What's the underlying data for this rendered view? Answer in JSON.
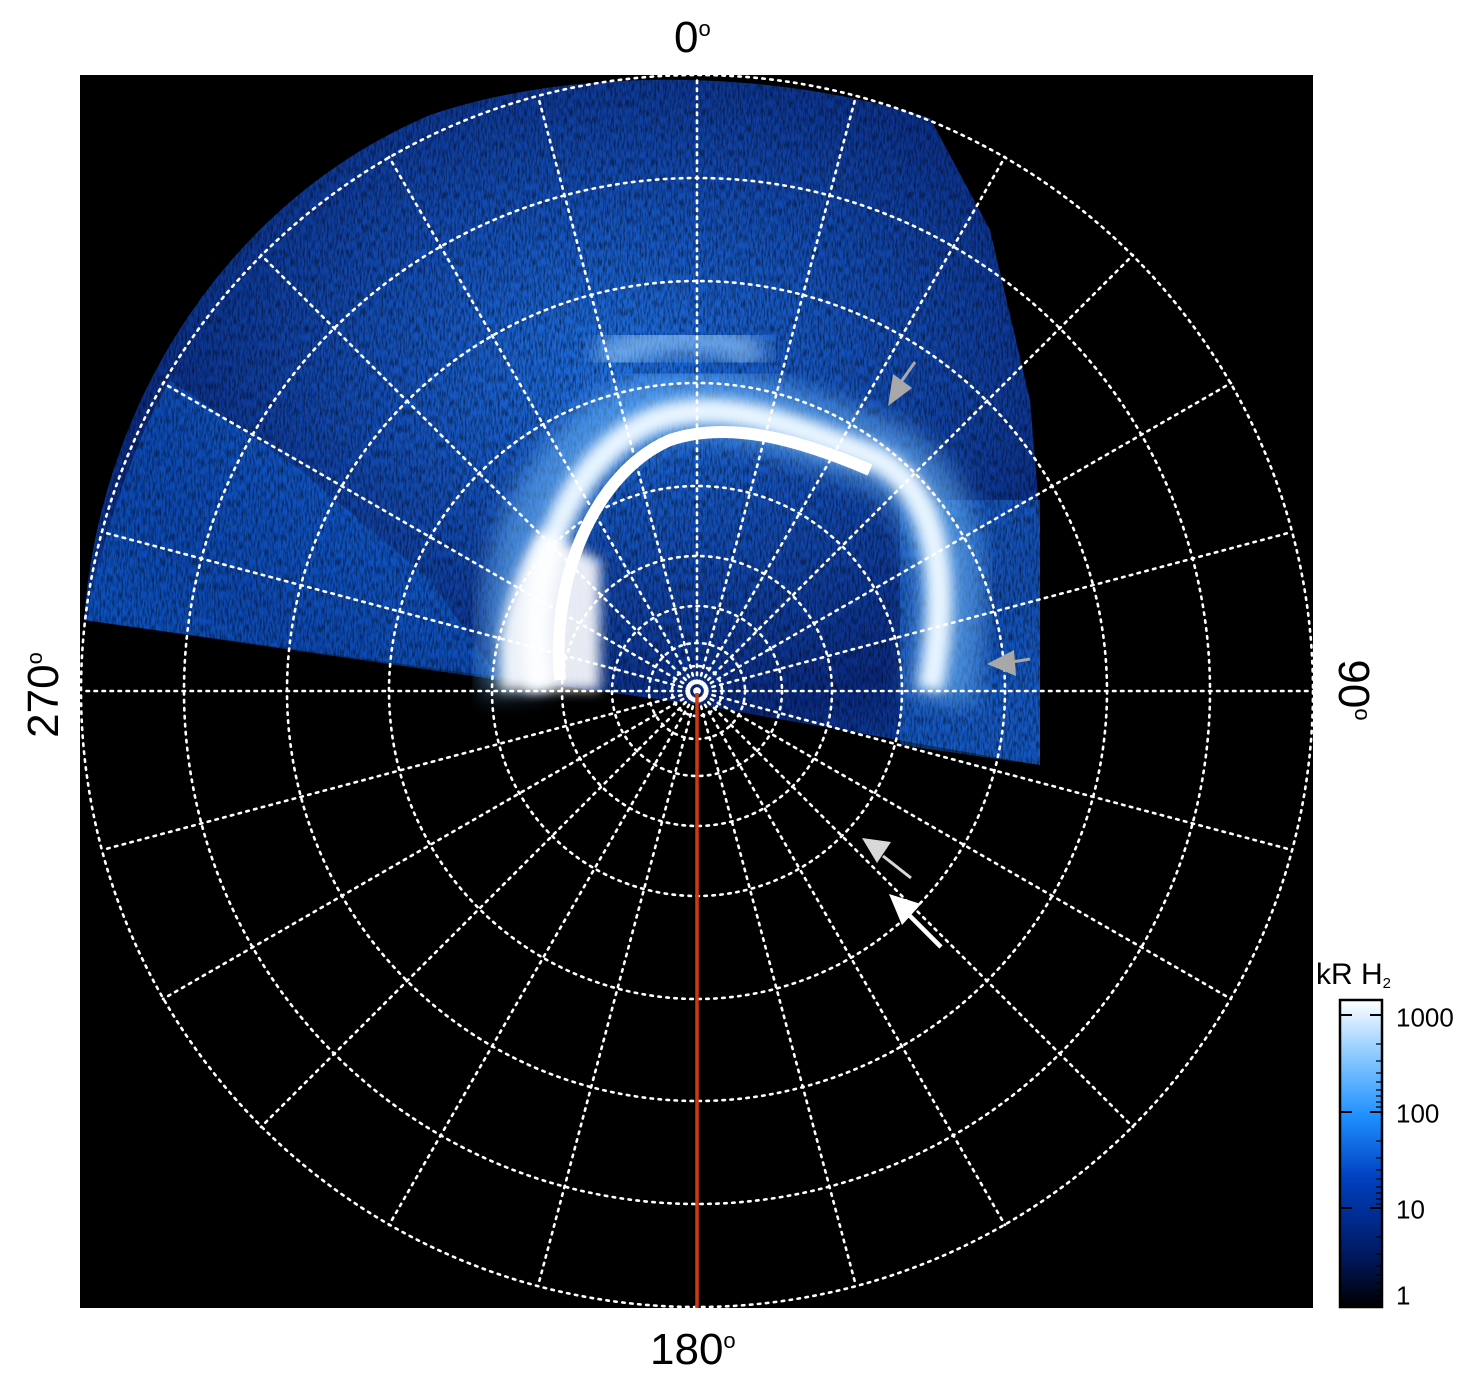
{
  "labels": {
    "top": "0",
    "bottom": "180",
    "left": "270",
    "right": "90",
    "degree_mark": "o"
  },
  "colorbar": {
    "title_main": "kR H",
    "title_sub": "2",
    "ticks": [
      "1000",
      "100",
      "10",
      "1"
    ],
    "gradient_colors": [
      "#000000",
      "#001a66",
      "#0040c0",
      "#1e8fff",
      "#8ccaff",
      "#ffffff"
    ]
  },
  "colors": {
    "background": "#000000",
    "grid": "#ffffff",
    "meridian_line": "#d03810",
    "arrow_gray": "#a8a8a8",
    "arrow_light": "#d8d8d8",
    "arrow_white": "#ffffff"
  }
}
